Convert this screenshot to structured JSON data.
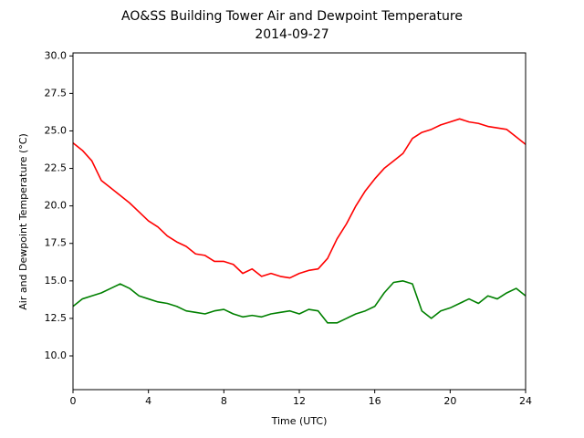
{
  "chart_data": {
    "type": "line",
    "title": "AO&SS Building Tower Air and Dewpoint Temperature",
    "subtitle": "2014-09-27",
    "x_label": "Time (UTC)",
    "y_label": "Air and Dewpoint Temperature (°C)",
    "x": [
      0,
      0.5,
      1,
      1.5,
      2,
      2.5,
      3,
      3.5,
      4,
      4.5,
      5,
      5.5,
      6,
      6.5,
      7,
      7.5,
      8,
      8.5,
      9,
      9.5,
      10,
      10.5,
      11,
      11.5,
      12,
      12.5,
      13,
      13.5,
      14,
      14.5,
      15,
      15.5,
      16,
      16.5,
      17,
      17.5,
      18,
      18.5,
      19,
      19.5,
      20,
      20.5,
      21,
      21.5,
      22,
      22.5,
      23,
      23.5,
      24
    ],
    "series": [
      {
        "color": "#ff0000",
        "values": [
          24.2,
          23.7,
          23.0,
          21.7,
          21.2,
          20.7,
          20.2,
          19.6,
          19.0,
          18.6,
          18.0,
          17.6,
          17.3,
          16.8,
          16.7,
          16.3,
          16.3,
          16.1,
          15.5,
          15.8,
          15.3,
          15.5,
          15.3,
          15.2,
          15.5,
          15.7,
          15.8,
          16.5,
          17.8,
          18.8,
          20.0,
          21.0,
          21.8,
          22.5,
          23.0,
          23.5,
          24.5,
          24.9,
          25.1,
          25.4,
          25.6,
          25.8,
          25.6,
          25.5,
          25.3,
          25.2,
          25.1,
          24.6,
          24.1
        ]
      },
      {
        "color": "#008000",
        "values": [
          13.3,
          13.8,
          14.0,
          14.2,
          14.5,
          14.8,
          14.5,
          14.0,
          13.8,
          13.6,
          13.5,
          13.3,
          13.0,
          12.9,
          12.8,
          13.0,
          13.1,
          12.8,
          12.6,
          12.7,
          12.6,
          12.8,
          12.9,
          13.0,
          12.8,
          13.1,
          13.0,
          12.2,
          12.2,
          12.5,
          12.8,
          13.0,
          13.3,
          14.2,
          14.9,
          15.0,
          14.8,
          13.0,
          12.5,
          13.0,
          13.2,
          13.5,
          13.8,
          13.5,
          14.0,
          13.8,
          14.2,
          14.5,
          14.0
        ]
      }
    ],
    "xlim": [
      0,
      24
    ],
    "xticks": [
      0,
      4,
      8,
      12,
      16,
      20,
      24
    ],
    "ylim": [
      7.75,
      30.2
    ],
    "yticks": [
      {
        "value": 10,
        "label": "10.0"
      },
      12.5,
      {
        "value": 15,
        "label": "15.0"
      },
      17.5,
      {
        "value": 20,
        "label": "20.0"
      },
      22.5,
      {
        "value": 25,
        "label": "25.0"
      },
      27.5,
      {
        "value": 30,
        "label": "30.0"
      }
    ]
  }
}
